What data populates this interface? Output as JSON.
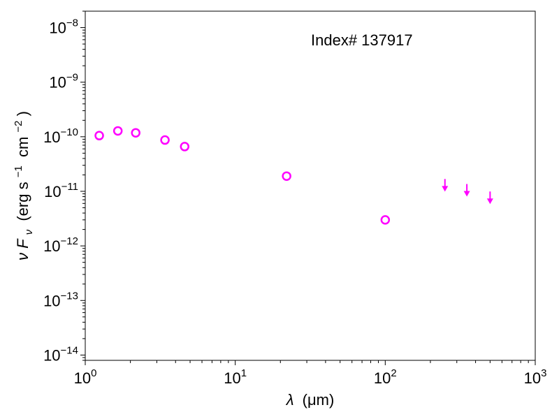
{
  "chart_data": {
    "type": "scatter",
    "title": "",
    "annotation": "Index# 137917",
    "xlabel": {
      "symbol": "λ",
      "unit": "(μm)"
    },
    "ylabel": {
      "prefix": "ν",
      "symbol": "F",
      "subscript": "ν",
      "unit_open": "(erg s",
      "exp1": "−1",
      "unit_mid": "cm",
      "exp2": "−2",
      "unit_close": ")"
    },
    "x_scale": "log",
    "y_scale": "log",
    "xlim": [
      1,
      1000
    ],
    "ylim": [
      8e-15,
      2e-08
    ],
    "x_ticks": [
      1,
      10,
      100,
      1000
    ],
    "x_tick_labels": [
      {
        "base": "10",
        "exp": "0"
      },
      {
        "base": "10",
        "exp": "1"
      },
      {
        "base": "10",
        "exp": "2"
      },
      {
        "base": "10",
        "exp": "3"
      }
    ],
    "y_ticks": [
      1e-14,
      1e-13,
      1e-12,
      1e-11,
      1e-10,
      1e-09,
      1e-08
    ],
    "y_tick_labels": [
      {
        "base": "10",
        "exp": "−14"
      },
      {
        "base": "10",
        "exp": "−13"
      },
      {
        "base": "10",
        "exp": "−12"
      },
      {
        "base": "10",
        "exp": "−11"
      },
      {
        "base": "10",
        "exp": "−10"
      },
      {
        "base": "10",
        "exp": "−9"
      },
      {
        "base": "10",
        "exp": "−8"
      }
    ],
    "grid": false,
    "legend": "none",
    "color": "#ff00ff",
    "detections": [
      {
        "x": 1.24,
        "y": 1.05e-10
      },
      {
        "x": 1.65,
        "y": 1.28e-10
      },
      {
        "x": 2.17,
        "y": 1.18e-10
      },
      {
        "x": 3.4,
        "y": 8.7e-11
      },
      {
        "x": 4.6,
        "y": 6.6e-11
      },
      {
        "x": 22,
        "y": 1.9e-11
      },
      {
        "x": 100,
        "y": 3e-12
      }
    ],
    "upper_limits": [
      {
        "x": 250,
        "y": 1.05e-11
      },
      {
        "x": 350,
        "y": 8.5e-12
      },
      {
        "x": 500,
        "y": 6.2e-12
      }
    ]
  }
}
